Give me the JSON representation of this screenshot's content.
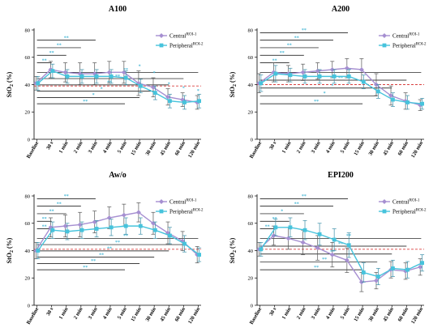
{
  "colors": {
    "central": "#a68fd1",
    "peripheral": "#46c3dc",
    "threshold": "#d94040",
    "sig": "#4ab8d6",
    "bracket": "#000000"
  },
  "chart_data": [
    {
      "type": "line",
      "title": "A100",
      "ylabel": "StO2 (%)",
      "ylabel_main": "StO",
      "ylabel_sub": "2",
      "ylabel_unit": " (%)",
      "ylim": [
        0,
        80
      ],
      "yticks": [
        "0",
        "20",
        "40",
        "60",
        "80"
      ],
      "threshold": 39,
      "categories": [
        "Baseline",
        "30 s",
        "1 min",
        "2 min",
        "3 min",
        "4 min",
        "5 min",
        "15 min",
        "30 min",
        "45 min",
        "60 min",
        "120 min"
      ],
      "series": [
        {
          "name": "Central",
          "name_sup": "ROI-1",
          "marker": "diamond",
          "values": [
            41,
            51,
            49,
            48,
            48,
            49,
            49,
            41,
            38,
            31,
            29,
            27
          ],
          "errors": [
            5,
            6,
            7,
            8,
            8,
            8,
            8,
            9,
            7,
            6,
            5,
            5
          ]
        },
        {
          "name": "Peripheral",
          "name_sup": "ROI-2",
          "marker": "square",
          "values": [
            41,
            50,
            46,
            46,
            46,
            46,
            45,
            39,
            34,
            28,
            27,
            28
          ],
          "errors": [
            5,
            5,
            5,
            5,
            5,
            5,
            5,
            5,
            5,
            5,
            5,
            5
          ]
        }
      ],
      "upper_brackets": [
        {
          "label": "**",
          "end": 4,
          "y": 72.5
        },
        {
          "label": "**",
          "end": 3,
          "y": 67
        },
        {
          "label": "**",
          "end": 2,
          "y": 61.5
        },
        {
          "label": "**",
          "end": 1,
          "y": 56
        }
      ],
      "lower_brackets": [
        {
          "label": "**",
          "end": 6
        },
        {
          "label": "*",
          "end": 7
        },
        {
          "label": "*",
          "end": 8
        },
        {
          "label": "**",
          "end": 9
        },
        {
          "label": "**",
          "end": 10
        },
        {
          "label": "**",
          "end": 11
        }
      ],
      "point_sig": [
        {
          "i": 7,
          "label": "*"
        },
        {
          "i": 8,
          "label": "*"
        },
        {
          "i": 9,
          "label": "*"
        },
        {
          "i": 10,
          "label": "*"
        },
        {
          "i": 11,
          "label": "*"
        }
      ],
      "legend": true
    },
    {
      "type": "line",
      "title": "A200",
      "ylabel": "StO2 (%)",
      "ylabel_main": "StO",
      "ylabel_sub": "2",
      "ylabel_unit": " (%)",
      "ylim": [
        0,
        80
      ],
      "yticks": [
        "0",
        "20",
        "40",
        "60",
        "80"
      ],
      "threshold": 40,
      "categories": [
        "Baseline",
        "30 s",
        "1 min",
        "2 min",
        "3 min",
        "4 min",
        "5 min",
        "15 min",
        "30 min",
        "45 min",
        "60 min",
        "120 min"
      ],
      "series": [
        {
          "name": "Central",
          "name_sup": "ROI-1",
          "marker": "diamond",
          "values": [
            41,
            49,
            48,
            49,
            50,
            51,
            52,
            51,
            40,
            32,
            28,
            25
          ],
          "errors": [
            7,
            7,
            6,
            6,
            6,
            6,
            7,
            8,
            8,
            7,
            6,
            4
          ]
        },
        {
          "name": "Peripheral",
          "name_sup": "ROI-2",
          "marker": "square",
          "values": [
            41,
            48,
            47,
            46,
            46,
            46,
            46,
            42,
            35,
            29,
            27,
            26
          ],
          "errors": [
            6,
            6,
            5,
            5,
            5,
            5,
            5,
            5,
            5,
            5,
            5,
            4
          ]
        }
      ],
      "upper_brackets": [
        {
          "label": "**",
          "end": 6,
          "y": 78
        },
        {
          "label": "**",
          "end": 5,
          "y": 72.5
        },
        {
          "label": "**",
          "end": 4,
          "y": 67
        },
        {
          "label": "**",
          "end": 3,
          "y": 61.5
        },
        {
          "label": "**",
          "end": 2,
          "y": 56
        }
      ],
      "lower_brackets": [
        {
          "label": "**",
          "end": 7
        },
        {
          "label": "*",
          "end": 8
        },
        {
          "label": "*",
          "end": 9
        },
        {
          "label": "**",
          "end": 10
        },
        {
          "label": "**",
          "end": 11
        }
      ],
      "point_sig": [],
      "legend": true
    },
    {
      "type": "line",
      "title": "Aw/o",
      "ylabel": "StO2 (%)",
      "ylabel_main": "StO",
      "ylabel_sub": "2",
      "ylabel_unit": " (%)",
      "ylim": [
        0,
        80
      ],
      "yticks": [
        "0",
        "20",
        "40",
        "60",
        "80"
      ],
      "threshold": 41,
      "categories": [
        "Baseline",
        "30 s",
        "1 min",
        "2 min",
        "3 min",
        "4 min",
        "5 min",
        "15 min",
        "30 min",
        "45 min",
        "60 min",
        "120 min"
      ],
      "series": [
        {
          "name": "Central",
          "name_sup": "ROI-1",
          "marker": "diamond",
          "values": [
            40,
            57,
            58,
            59,
            61,
            64,
            66,
            68,
            60,
            53,
            47,
            37
          ],
          "errors": [
            6,
            7,
            8,
            9,
            8,
            8,
            8,
            7,
            8,
            8,
            7,
            6
          ]
        },
        {
          "name": "Peripheral",
          "name_sup": "ROI-2",
          "marker": "square",
          "values": [
            40,
            55,
            54,
            55,
            56,
            57,
            58,
            58,
            55,
            51,
            45,
            37
          ],
          "errors": [
            6,
            6,
            6,
            6,
            6,
            6,
            6,
            6,
            6,
            6,
            6,
            5
          ]
        }
      ],
      "upper_brackets": [
        {
          "label": "**",
          "end": 4,
          "y": 78
        },
        {
          "label": "**",
          "end": 3,
          "y": 72.5
        },
        {
          "label": "**",
          "end": 2,
          "y": 67
        },
        {
          "label": "**",
          "end": 1,
          "y": 61.5
        },
        {
          "label": "**",
          "end": 1,
          "y": 56
        }
      ],
      "lower_brackets": [
        {
          "label": "**",
          "end": 6
        },
        {
          "label": "**",
          "end": 7
        },
        {
          "label": "**",
          "end": 8
        },
        {
          "label": "**",
          "end": 9
        },
        {
          "label": "**",
          "end": 10
        },
        {
          "label": "**",
          "end": 11
        }
      ],
      "point_sig": [],
      "legend": true
    },
    {
      "type": "line",
      "title": "EPI200",
      "ylabel": "StO2 (%)",
      "ylabel_main": "StO",
      "ylabel_sub": "2",
      "ylabel_unit": " (%)",
      "ylim": [
        0,
        80
      ],
      "yticks": [
        "0",
        "20",
        "40",
        "60",
        "80"
      ],
      "threshold": 41,
      "categories": [
        "Baseline",
        "30 s",
        "1 min",
        "2 min",
        "3 min",
        "4 min",
        "5 min",
        "15 min",
        "30 min",
        "45 min",
        "60 min",
        "120 min"
      ],
      "series": [
        {
          "name": "Central",
          "name_sup": "ROI-1",
          "marker": "diamond",
          "values": [
            41,
            51,
            49,
            46,
            42,
            37,
            33,
            17,
            18,
            26,
            25,
            28
          ],
          "errors": [
            5,
            7,
            8,
            9,
            9,
            9,
            9,
            7,
            6,
            6,
            6,
            6
          ]
        },
        {
          "name": "Peripheral",
          "name_sup": "ROI-2",
          "marker": "square",
          "values": [
            41,
            57,
            57,
            55,
            52,
            48,
            44,
            24,
            21,
            27,
            26,
            31
          ],
          "errors": [
            5,
            6,
            7,
            7,
            8,
            8,
            9,
            7,
            6,
            6,
            6,
            6
          ]
        }
      ],
      "upper_brackets": [
        {
          "label": "**",
          "end": 6,
          "y": 78
        },
        {
          "label": "**",
          "end": 5,
          "y": 72.5
        },
        {
          "label": "*",
          "end": 3,
          "y": 67
        },
        {
          "label": "**",
          "end": 2,
          "y": 61.5
        },
        {
          "label": "**",
          "end": 1,
          "y": 56
        }
      ],
      "lower_brackets": [
        {
          "label": "**",
          "end": 7
        },
        {
          "label": "**",
          "end": 8
        },
        {
          "label": "**",
          "end": 9
        },
        {
          "label": "**",
          "end": 10
        },
        {
          "label": "**",
          "end": 11
        }
      ],
      "point_sig": [],
      "legend": true
    }
  ]
}
